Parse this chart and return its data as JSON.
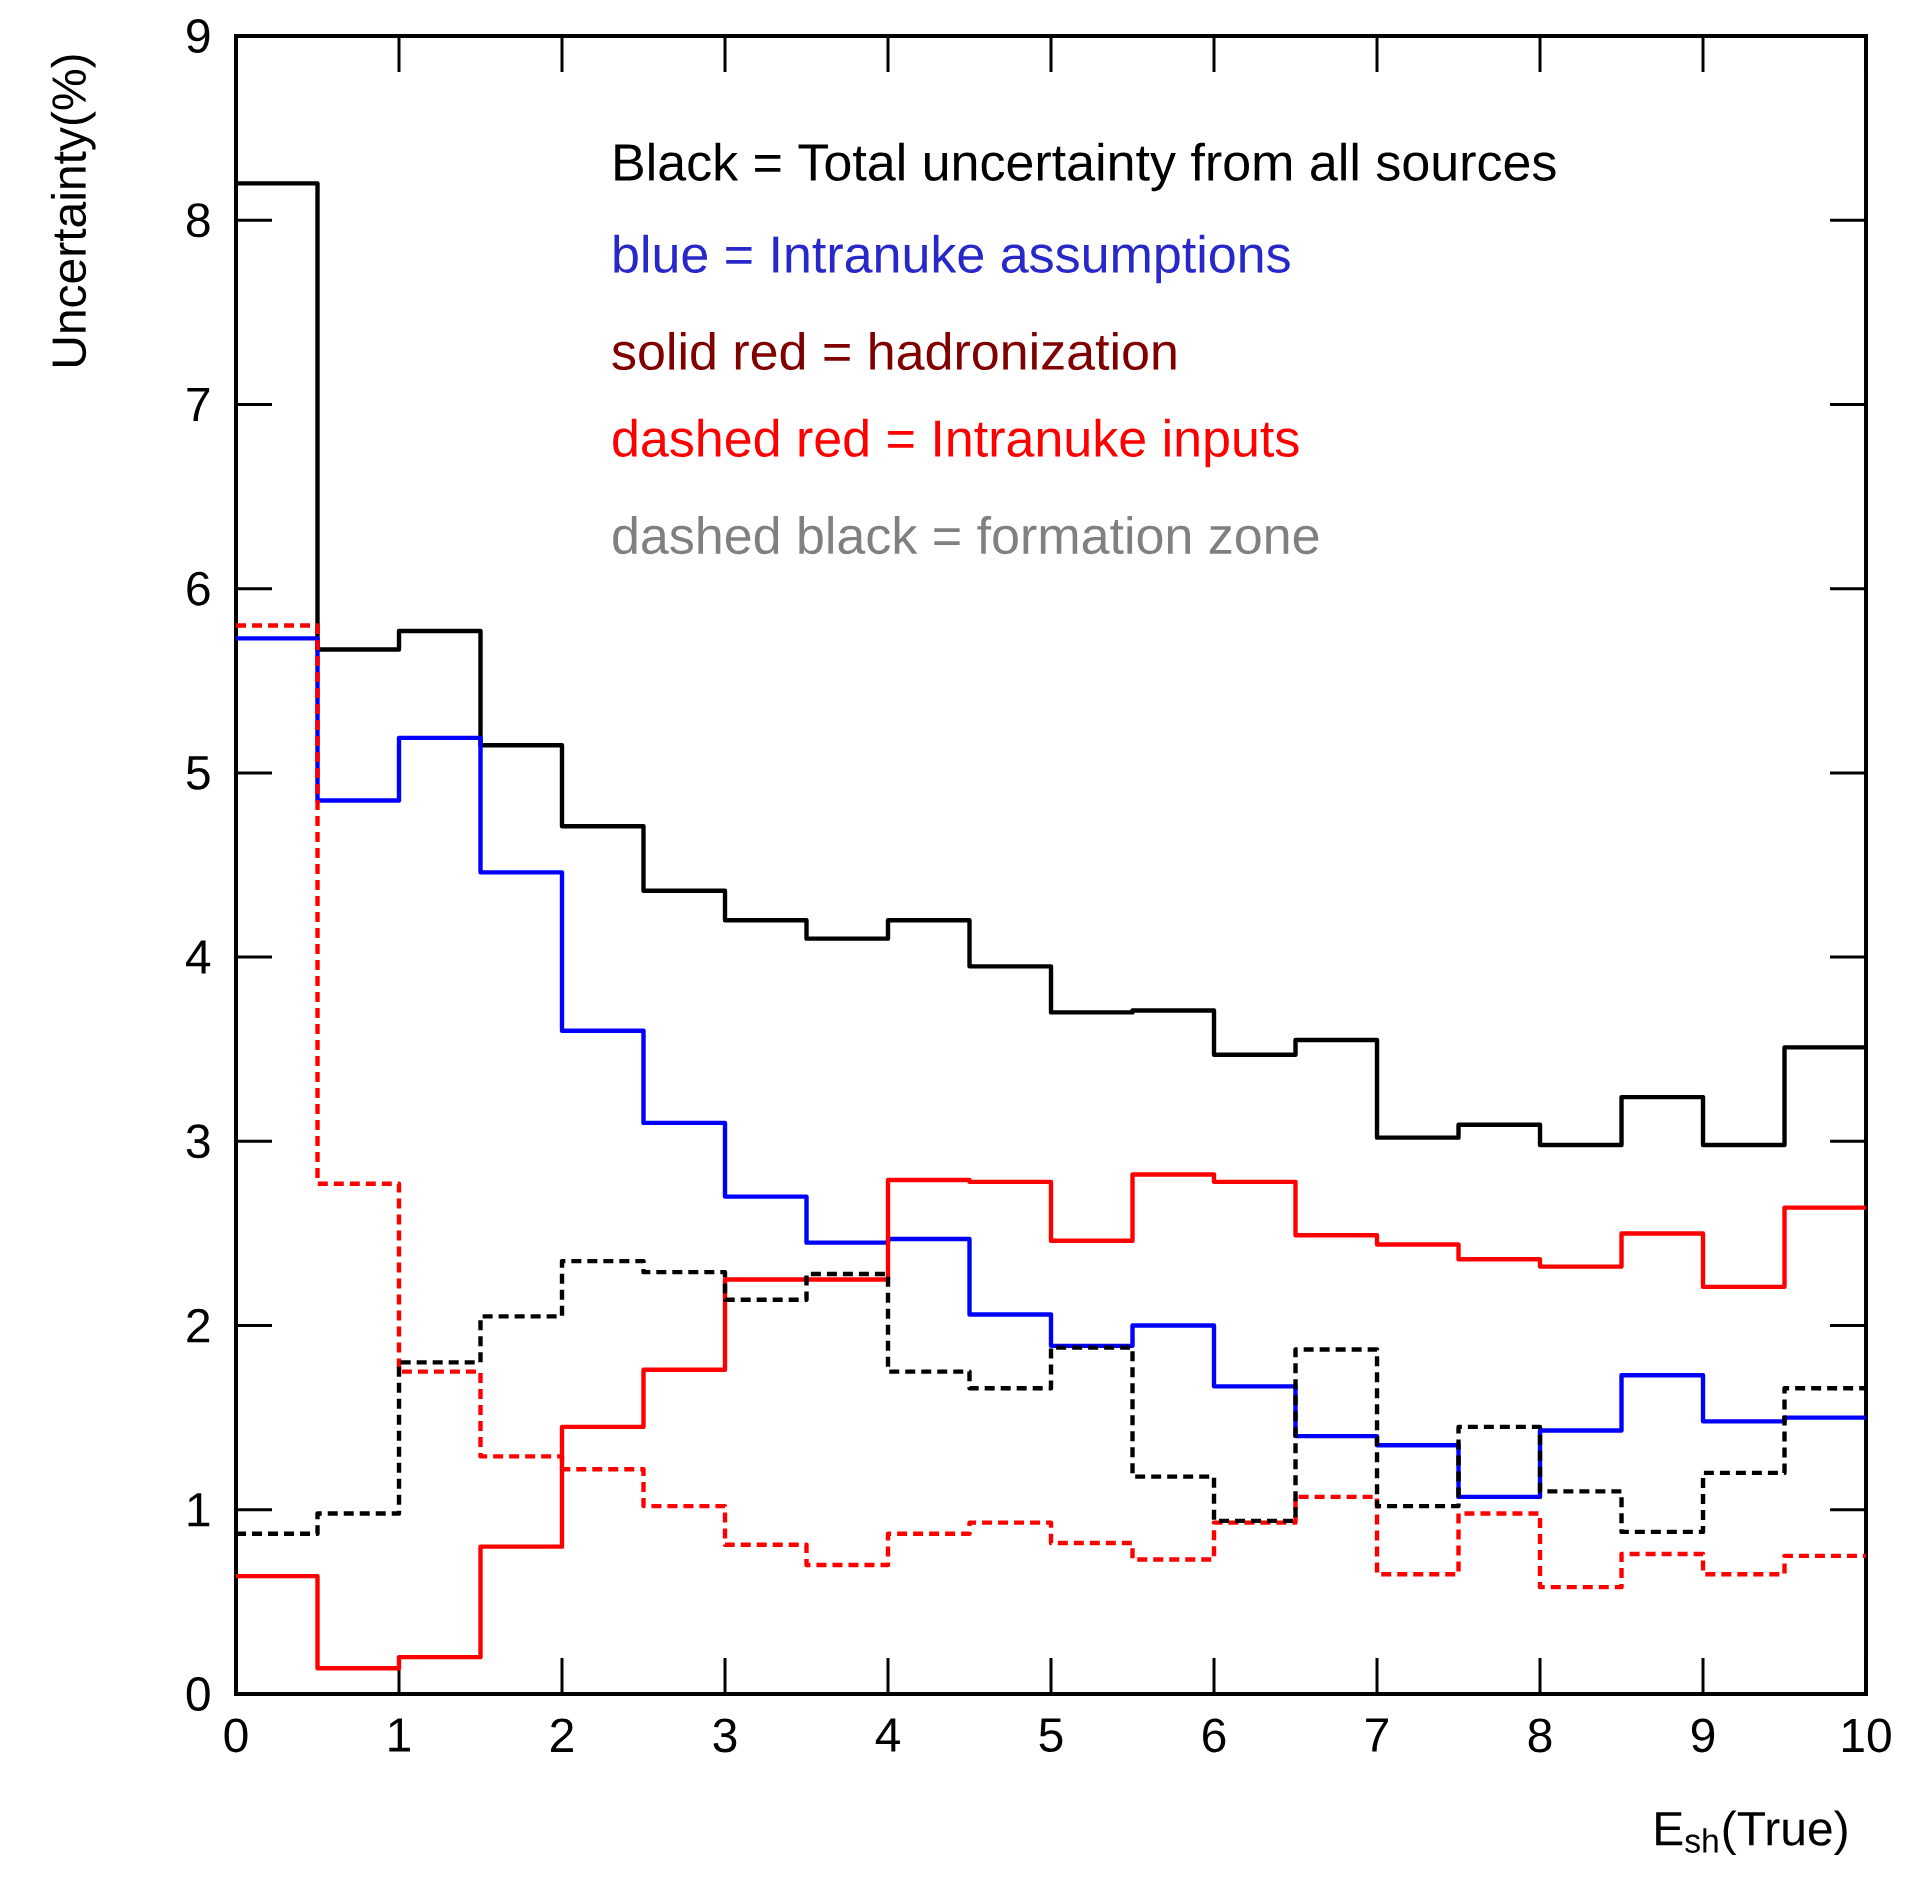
{
  "chart_data": {
    "type": "step",
    "xlabel": "E$_{sh}$(True)",
    "ylabel": "Uncertainty(%)",
    "x": [
      0,
      0.5,
      1,
      1.5,
      2,
      2.5,
      3,
      3.5,
      4,
      4.5,
      5,
      5.5,
      6,
      6.5,
      7,
      7.5,
      8,
      8.5,
      9,
      9.5,
      10
    ],
    "series": [
      {
        "color": "#000000",
        "line_style": "solid",
        "values": [
          8.2,
          5.67,
          5.77,
          5.15,
          4.71,
          4.36,
          4.2,
          4.1,
          4.2,
          3.95,
          3.7,
          3.71,
          3.47,
          3.55,
          3.02,
          3.09,
          2.98,
          3.24,
          2.98,
          3.51,
          3.51
        ]
      },
      {
        "color": "#0000ff",
        "line_style": "solid",
        "values": [
          5.73,
          4.85,
          5.19,
          4.46,
          3.6,
          3.1,
          2.7,
          2.45,
          2.47,
          2.06,
          1.89,
          2.0,
          1.67,
          1.4,
          1.35,
          1.07,
          1.43,
          1.73,
          1.48,
          1.5,
          1.5
        ]
      },
      {
        "color": "#ff0000",
        "line_style": "solid",
        "values": [
          0.64,
          0.14,
          0.2,
          0.8,
          1.45,
          1.76,
          2.25,
          2.25,
          2.79,
          2.78,
          2.46,
          2.82,
          2.78,
          2.49,
          2.44,
          2.36,
          2.32,
          2.5,
          2.21,
          2.64,
          2.64
        ]
      },
      {
        "color": "#ff0000",
        "line_style": "dashed",
        "values": [
          5.8,
          2.77,
          1.75,
          1.29,
          1.22,
          1.02,
          0.81,
          0.7,
          0.87,
          0.93,
          0.82,
          0.73,
          0.93,
          1.07,
          0.65,
          0.98,
          0.58,
          0.76,
          0.65,
          0.75,
          0.75
        ]
      },
      {
        "color": "#000000",
        "line_style": "dashed",
        "values": [
          0.87,
          0.98,
          1.8,
          2.05,
          2.35,
          2.29,
          2.14,
          2.28,
          1.75,
          1.66,
          1.88,
          1.18,
          0.94,
          1.87,
          1.02,
          1.45,
          1.1,
          0.88,
          1.2,
          1.66,
          1.66
        ]
      }
    ],
    "annotations": [
      "Black = Total uncertainty from all sources",
      "blue = Intranuke assumptions",
      "solid red = hadronization",
      "dashed red = Intranuke inputs",
      "dashed black = formation zone"
    ],
    "xlim": [
      0,
      10
    ],
    "ylim": [
      0,
      9
    ],
    "xticks": [
      0,
      1,
      2,
      3,
      4,
      5,
      6,
      7,
      8,
      9,
      10
    ],
    "yticks": [
      0,
      1,
      2,
      3,
      4,
      5,
      6,
      7,
      8,
      9
    ]
  }
}
